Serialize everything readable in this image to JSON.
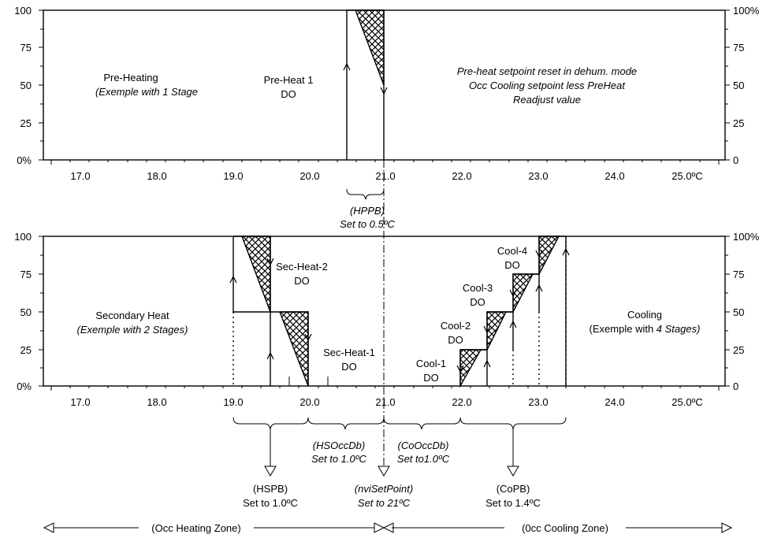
{
  "left_ticks": [
    "100",
    "75",
    "50",
    "25",
    "0%"
  ],
  "right_ticks": [
    "100%",
    "75",
    "50",
    "25",
    "0"
  ],
  "x_ticks": [
    "17.0",
    "18.0",
    "19.0",
    "20.0",
    "21.0",
    "22.0",
    "23.0",
    "24.0",
    "25.0ºC"
  ],
  "top": {
    "pre_heating_line1": "Pre-Heating",
    "pre_heating_line2": "(Exemple with  1 Stage",
    "preheat1_line1": "Pre-Heat 1",
    "preheat1_line2": "DO",
    "note_line1": "Pre-heat setpoint reset in dehum. mode",
    "note_line2": "Occ Cooling setpoint less PreHeat",
    "note_line3": "Readjust value"
  },
  "hppb": {
    "line1": "(HPPB)",
    "line2": "Set to 0.5ºC"
  },
  "bottom": {
    "secondary_line1": "Secondary Heat",
    "secondary_line2": "(Exemple with  2 Stages)",
    "secheat2_line1": "Sec-Heat-2",
    "secheat2_line2": "DO",
    "secheat1_line1": "Sec-Heat-1",
    "secheat1_line2": "DO",
    "cool1_line1": "Cool-1",
    "cool1_line2": "DO",
    "cool2_line1": "Cool-2",
    "cool2_line2": "DO",
    "cool3_line1": "Cool-3",
    "cool3_line2": "DO",
    "cool4_line1": "Cool-4",
    "cool4_line2": "DO",
    "cooling_line1": "Cooling",
    "cooling_line2_a": "(Exemple with ",
    "cooling_line2_b": "4 Stages)"
  },
  "brackets": {
    "hsoccdb_line1": "(HSOccDb)",
    "hsoccdb_line2": "Set to 1.0ºC",
    "cooccdb_line1": "(CoOccDb)",
    "cooccdb_line2": "Set to1.0ºC",
    "hspb_line1": "(HSPB)",
    "hspb_line2": "Set to 1.0ºC",
    "setpoint_line1": "(nviSetPoint)",
    "setpoint_line2": "Set to 21ºC",
    "copb_line1": "(CoPB)",
    "copb_line2": "Set to 1.4ºC"
  },
  "zones": {
    "heating": "(Occ Heating Zone)",
    "cooling": "(0cc Cooling Zone)"
  }
}
